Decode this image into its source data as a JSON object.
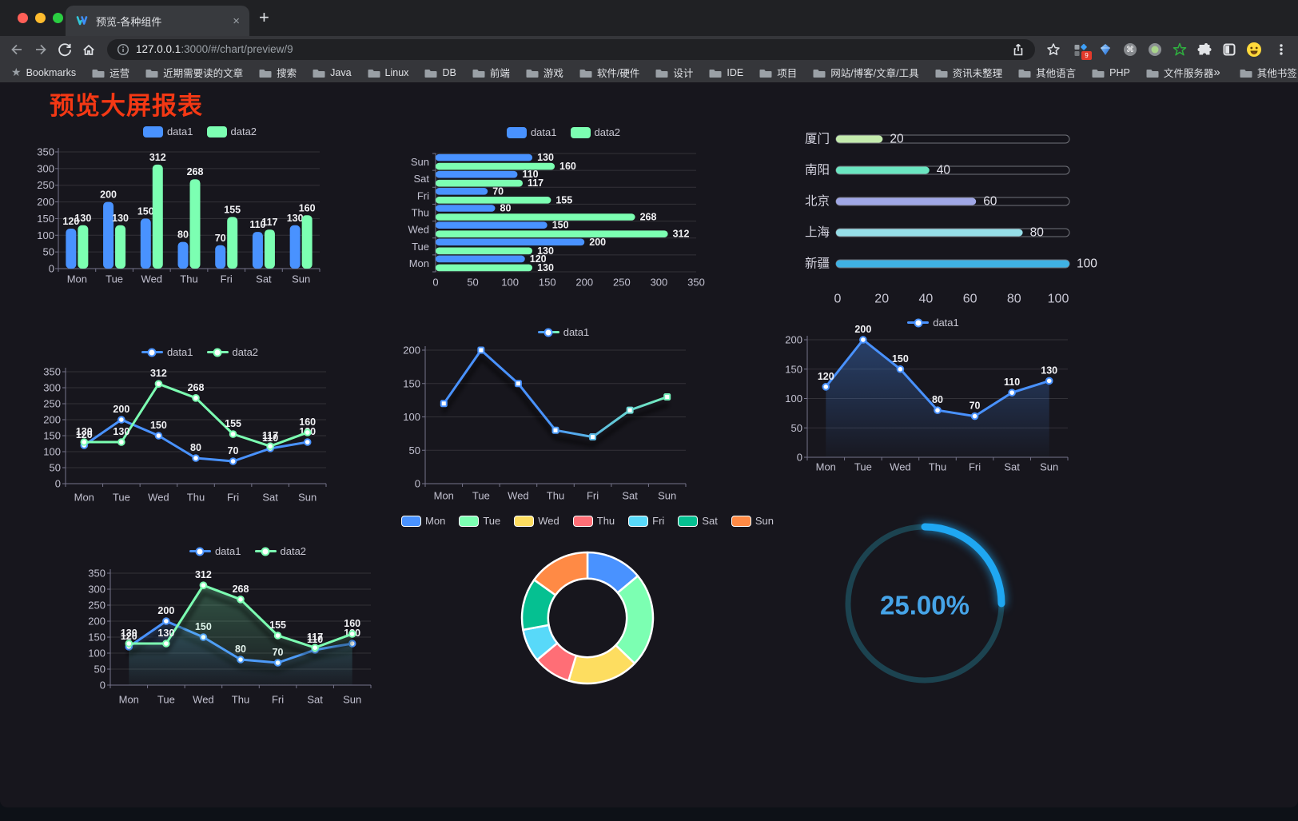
{
  "browser": {
    "traffic_lights": [
      "#ff5f57",
      "#febc2e",
      "#2ace41"
    ],
    "tab": {
      "title": "预览-各种组件",
      "close": "×",
      "new_tab": "+"
    },
    "url": {
      "host": "127.0.0.1",
      "rest": ":3000/#/chart/preview/9"
    },
    "bookmarks": {
      "label": "Bookmarks",
      "folders": [
        "运营",
        "近期需要读的文章",
        "搜索",
        "Java",
        "Linux",
        "DB",
        "前端",
        "游戏",
        "软件/硬件",
        "设计",
        "IDE",
        "项目",
        "网站/博客/文章/工具",
        "资讯未整理",
        "其他语言",
        "PHP",
        "文件服务器"
      ],
      "overflow": "»",
      "other": "其他书签"
    },
    "extensions_badge": "9"
  },
  "page": {
    "title": "预览大屏报表",
    "title_color": "#f43814",
    "background": "#17161d"
  },
  "chart_data": [
    {
      "id": "bar-vertical",
      "type": "bar",
      "orientation": "vertical",
      "categories": [
        "Mon",
        "Tue",
        "Wed",
        "Thu",
        "Fri",
        "Sat",
        "Sun"
      ],
      "series": [
        {
          "name": "data1",
          "color": "#4992ff",
          "values": [
            120,
            200,
            150,
            80,
            70,
            110,
            130
          ]
        },
        {
          "name": "data2",
          "color": "#7cffb2",
          "values": [
            130,
            130,
            312,
            268,
            155,
            117,
            160
          ]
        }
      ],
      "yticks": [
        0,
        50,
        100,
        150,
        200,
        250,
        300,
        350
      ],
      "ylim": [
        0,
        350
      ],
      "legend_position": "top",
      "value_labels": true,
      "grid": true
    },
    {
      "id": "bar-horizontal",
      "type": "bar",
      "orientation": "horizontal",
      "categories_top_to_bottom": [
        "Sun",
        "Sat",
        "Fri",
        "Thu",
        "Wed",
        "Tue",
        "Mon"
      ],
      "series": [
        {
          "name": "data1",
          "color": "#4992ff",
          "values_top_to_bottom": [
            130,
            110,
            70,
            80,
            150,
            200,
            120
          ]
        },
        {
          "name": "data2",
          "color": "#7cffb2",
          "values_top_to_bottom": [
            160,
            117,
            155,
            268,
            312,
            130,
            130
          ]
        }
      ],
      "xticks": [
        0,
        50,
        100,
        150,
        200,
        250,
        300,
        350
      ],
      "xlim": [
        0,
        350
      ],
      "legend_position": "top",
      "value_labels": true,
      "grid": true
    },
    {
      "id": "progress-bars",
      "type": "bar",
      "orientation": "horizontal-progress",
      "items": [
        {
          "label": "厦门",
          "value": 20,
          "color": "#c4ebad"
        },
        {
          "label": "南阳",
          "value": 40,
          "color": "#6be6c1"
        },
        {
          "label": "北京",
          "value": 60,
          "color": "#a0a7e6"
        },
        {
          "label": "上海",
          "value": 80,
          "color": "#96dee8"
        },
        {
          "label": "新疆",
          "value": 100,
          "color": "#3fb1e3"
        }
      ],
      "xticks": [
        0,
        20,
        40,
        60,
        80,
        100
      ],
      "max": 100,
      "value_labels": true
    },
    {
      "id": "line-two-series",
      "type": "line",
      "categories": [
        "Mon",
        "Tue",
        "Wed",
        "Thu",
        "Fri",
        "Sat",
        "Sun"
      ],
      "series": [
        {
          "name": "data1",
          "color": "#4992ff",
          "values": [
            120,
            200,
            150,
            80,
            70,
            110,
            130
          ]
        },
        {
          "name": "data2",
          "color": "#7cffb2",
          "values": [
            130,
            130,
            312,
            268,
            155,
            117,
            160
          ]
        }
      ],
      "yticks": [
        0,
        50,
        100,
        150,
        200,
        250,
        300,
        350
      ],
      "ylim": [
        0,
        350
      ],
      "legend_position": "top",
      "value_labels": true,
      "grid": true
    },
    {
      "id": "line-gradient",
      "type": "line",
      "categories": [
        "Mon",
        "Tue",
        "Wed",
        "Thu",
        "Fri",
        "Sat",
        "Sun"
      ],
      "series": [
        {
          "name": "data1",
          "color_gradient": [
            "#4992ff",
            "#7cffb2"
          ],
          "values": [
            120,
            200,
            150,
            80,
            70,
            110,
            130
          ]
        }
      ],
      "yticks": [
        0,
        50,
        100,
        150,
        200
      ],
      "ylim": [
        0,
        200
      ],
      "legend_position": "top",
      "value_labels": false,
      "shadow": true,
      "grid": true
    },
    {
      "id": "line-area",
      "type": "area",
      "categories": [
        "Mon",
        "Tue",
        "Wed",
        "Thu",
        "Fri",
        "Sat",
        "Sun"
      ],
      "series": [
        {
          "name": "data1",
          "color": "#4992ff",
          "area": true,
          "values": [
            120,
            200,
            150,
            80,
            70,
            110,
            130
          ]
        }
      ],
      "yticks": [
        0,
        50,
        100,
        150,
        200
      ],
      "ylim": [
        0,
        200
      ],
      "legend_position": "top",
      "value_labels": true,
      "grid": true
    },
    {
      "id": "area-two-series",
      "type": "area",
      "categories": [
        "Mon",
        "Tue",
        "Wed",
        "Thu",
        "Fri",
        "Sat",
        "Sun"
      ],
      "series": [
        {
          "name": "data1",
          "color": "#4992ff",
          "area": true,
          "values": [
            120,
            200,
            150,
            80,
            70,
            110,
            130
          ]
        },
        {
          "name": "data2",
          "color": "#7cffb2",
          "area": true,
          "values": [
            130,
            130,
            312,
            268,
            155,
            117,
            160
          ]
        }
      ],
      "yticks": [
        0,
        50,
        100,
        150,
        200,
        250,
        300,
        350
      ],
      "ylim": [
        0,
        350
      ],
      "legend_position": "top",
      "value_labels": true,
      "shadow": true,
      "grid": true
    },
    {
      "id": "donut",
      "type": "pie",
      "inner_radius_ratio": 0.6,
      "items": [
        {
          "label": "Mon",
          "value": 120,
          "color": "#4992ff"
        },
        {
          "label": "Tue",
          "value": 200,
          "color": "#7cffb2"
        },
        {
          "label": "Wed",
          "value": 150,
          "color": "#fddd60"
        },
        {
          "label": "Thu",
          "value": 80,
          "color": "#ff6e76"
        },
        {
          "label": "Fri",
          "value": 70,
          "color": "#58d9f9"
        },
        {
          "label": "Sat",
          "value": 110,
          "color": "#05c091"
        },
        {
          "label": "Sun",
          "value": 130,
          "color": "#ff8a45"
        }
      ],
      "legend_position": "top",
      "start_angle_deg": 0,
      "border_color": "#ffffff"
    },
    {
      "id": "gauge",
      "type": "gauge",
      "value": 25,
      "display": "25.00%",
      "color": "#1fa7f2",
      "track_color": "#1c4350",
      "text_color": "#46a4e8"
    }
  ]
}
